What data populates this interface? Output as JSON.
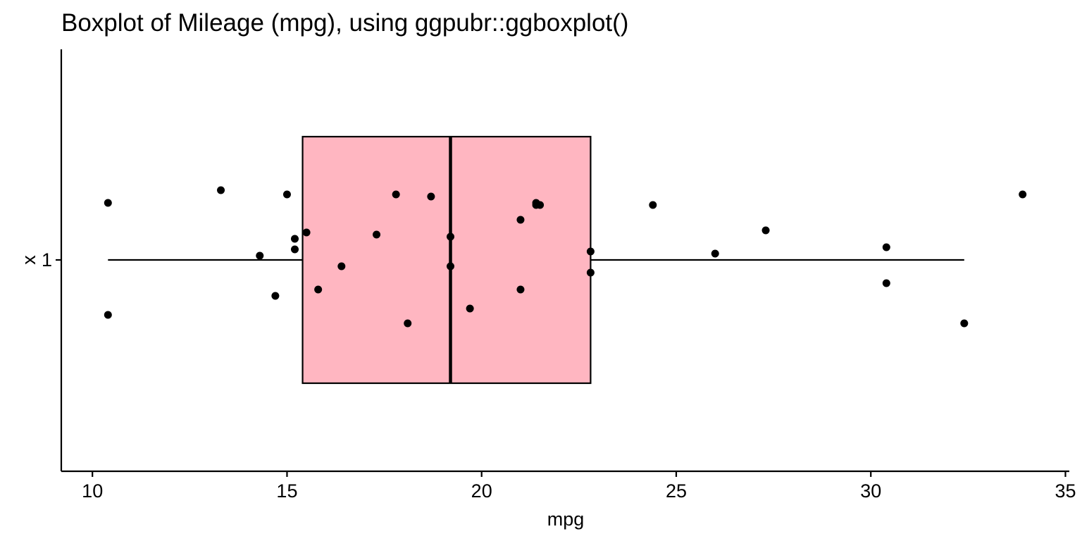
{
  "chart_data": {
    "type": "boxplot",
    "title": "Boxplot of Mileage (mpg), using ggpubr::ggboxplot()",
    "xlabel": "mpg",
    "ylabel": "x",
    "orientation": "horizontal",
    "xlim": [
      9.2,
      35.1
    ],
    "x_ticks": [
      10,
      15,
      20,
      25,
      30,
      35
    ],
    "categories": [
      "1"
    ],
    "grid": false,
    "legend": "none",
    "box_fill": "#FFB6C1",
    "point_color": "#000000",
    "boxes": [
      {
        "category": "1",
        "whisker_low": 10.4,
        "q1": 15.4,
        "median": 19.2,
        "q3": 22.8,
        "whisker_high": 32.4
      }
    ],
    "points": [
      {
        "x": 10.4,
        "jitter": 0.27
      },
      {
        "x": 10.4,
        "jitter": -0.26
      },
      {
        "x": 13.3,
        "jitter": 0.33
      },
      {
        "x": 14.3,
        "jitter": 0.02
      },
      {
        "x": 14.7,
        "jitter": -0.17
      },
      {
        "x": 15.0,
        "jitter": 0.31
      },
      {
        "x": 15.2,
        "jitter": 0.05
      },
      {
        "x": 15.2,
        "jitter": 0.1
      },
      {
        "x": 15.5,
        "jitter": 0.13
      },
      {
        "x": 15.8,
        "jitter": -0.14
      },
      {
        "x": 16.4,
        "jitter": -0.03
      },
      {
        "x": 17.3,
        "jitter": 0.12
      },
      {
        "x": 17.8,
        "jitter": 0.31
      },
      {
        "x": 18.1,
        "jitter": -0.3
      },
      {
        "x": 18.7,
        "jitter": 0.3
      },
      {
        "x": 19.2,
        "jitter": 0.11
      },
      {
        "x": 19.2,
        "jitter": -0.03
      },
      {
        "x": 19.7,
        "jitter": -0.23
      },
      {
        "x": 21.0,
        "jitter": 0.19
      },
      {
        "x": 21.0,
        "jitter": -0.14
      },
      {
        "x": 21.4,
        "jitter": 0.27
      },
      {
        "x": 21.4,
        "jitter": 0.26
      },
      {
        "x": 21.5,
        "jitter": 0.26
      },
      {
        "x": 22.8,
        "jitter": 0.04
      },
      {
        "x": 22.8,
        "jitter": -0.06
      },
      {
        "x": 24.4,
        "jitter": 0.26
      },
      {
        "x": 26.0,
        "jitter": 0.03
      },
      {
        "x": 27.3,
        "jitter": 0.14
      },
      {
        "x": 30.4,
        "jitter": 0.06
      },
      {
        "x": 30.4,
        "jitter": -0.11
      },
      {
        "x": 32.4,
        "jitter": -0.3
      },
      {
        "x": 33.9,
        "jitter": 0.31
      }
    ]
  }
}
